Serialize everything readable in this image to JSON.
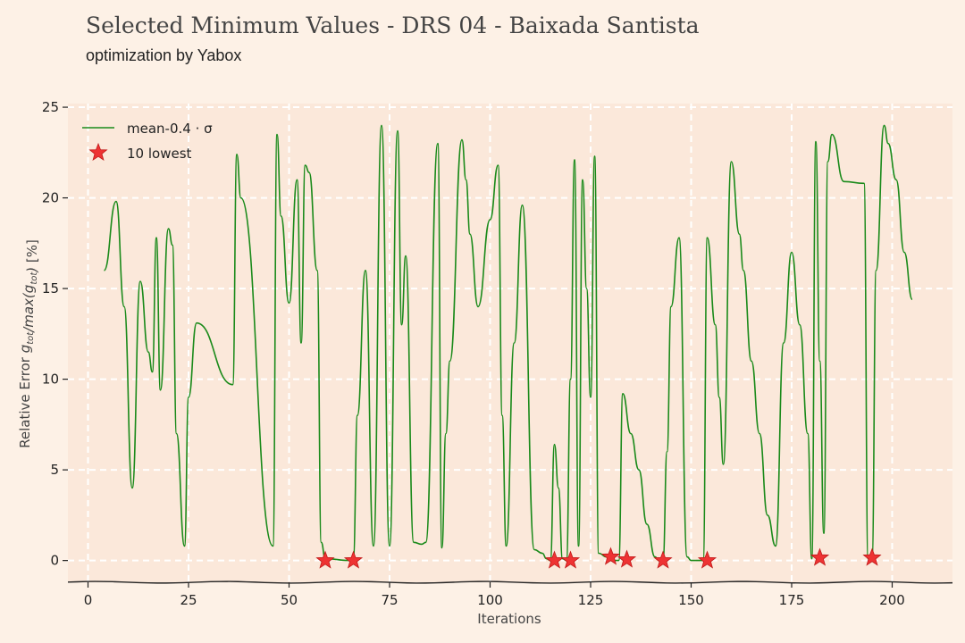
{
  "header": {
    "title": "Selected Minimum Values - DRS 04 - Baixada Santista",
    "subtitle": "optimization by Yabox"
  },
  "chart_data": {
    "type": "line",
    "title": "Selected Minimum Values - DRS 04 - Baixada Santista",
    "subtitle": "optimization by Yabox",
    "xlabel": "Iterations",
    "ylabel": "Relative Error g_tot/max(g_tot) [%]",
    "xlim": [
      -5,
      215
    ],
    "ylim": [
      -1.2,
      25.2
    ],
    "xticks": [
      0,
      25,
      50,
      75,
      100,
      125,
      150,
      175,
      200
    ],
    "yticks": [
      0,
      5,
      10,
      15,
      20,
      25
    ],
    "grid": true,
    "legend_position": "top-left",
    "series": [
      {
        "name": "mean-0.4 · σ",
        "color": "#1a8a1a",
        "x": [
          4,
          7,
          9,
          11,
          13,
          15,
          16,
          17,
          18,
          20,
          21,
          22,
          24,
          25,
          27,
          36,
          37,
          38,
          46,
          47,
          48,
          50,
          52,
          53,
          54,
          55,
          57,
          58,
          59,
          65,
          66,
          67,
          69,
          71,
          73,
          75,
          77,
          78,
          79,
          81,
          83,
          84,
          87,
          88,
          89,
          90,
          93,
          94,
          95,
          97,
          100,
          102,
          103,
          104,
          106,
          108,
          111,
          113,
          114,
          115,
          116,
          117,
          118,
          119,
          120,
          121,
          122,
          123,
          124,
          125,
          126,
          127,
          129,
          130,
          131,
          132,
          133,
          135,
          137,
          139,
          141,
          142,
          143,
          144,
          145,
          147,
          149,
          150,
          151,
          152,
          153,
          154,
          156,
          157,
          158,
          160,
          162,
          163,
          165,
          167,
          169,
          171,
          173,
          175,
          177,
          179,
          180,
          181,
          182,
          183,
          184,
          185,
          188,
          193,
          194,
          195,
          196,
          198,
          199,
          201,
          203,
          205
        ],
        "y": [
          16.0,
          19.8,
          14.0,
          4.0,
          15.4,
          11.5,
          10.4,
          17.8,
          9.4,
          18.3,
          17.4,
          7.0,
          0.8,
          9.0,
          13.1,
          9.7,
          22.4,
          20.0,
          0.8,
          23.5,
          19.0,
          14.2,
          21.0,
          12.0,
          21.8,
          21.4,
          16.0,
          1.0,
          0.1,
          0.0,
          0.2,
          8.0,
          16.0,
          0.8,
          24.0,
          0.8,
          23.7,
          13.0,
          16.8,
          1.0,
          0.9,
          1.0,
          23.0,
          0.7,
          7.0,
          11.0,
          23.2,
          21.0,
          18.0,
          14.0,
          18.8,
          21.8,
          8.0,
          0.8,
          12.0,
          19.6,
          0.6,
          0.4,
          0.1,
          0.0,
          6.4,
          4.0,
          0.1,
          0.0,
          10.0,
          22.1,
          0.8,
          21.0,
          15.0,
          9.0,
          22.3,
          0.4,
          0.2,
          0.1,
          0.0,
          0.0,
          9.2,
          7.0,
          5.0,
          2.0,
          0.2,
          0.0,
          0.0,
          6.0,
          14.0,
          17.8,
          0.2,
          0.0,
          0.0,
          0.0,
          0.0,
          17.8,
          13.0,
          9.0,
          5.3,
          22.0,
          18.0,
          16.0,
          11.0,
          7.0,
          2.5,
          0.8,
          12.0,
          17.0,
          13.0,
          7.0,
          0.1,
          23.1,
          11.0,
          1.5,
          22.0,
          23.5,
          20.9,
          20.8,
          0.1,
          0.2,
          16.0,
          24.0,
          23.0,
          21.0,
          17.0,
          14.4
        ]
      },
      {
        "name": "10 lowest",
        "color": "#ee3333",
        "x": [
          59,
          66,
          116,
          120,
          130,
          134,
          143,
          154,
          182,
          195
        ],
        "y": [
          0.0,
          0.0,
          0.0,
          0.0,
          0.2,
          0.05,
          0.0,
          0.0,
          0.15,
          0.15
        ]
      }
    ]
  }
}
